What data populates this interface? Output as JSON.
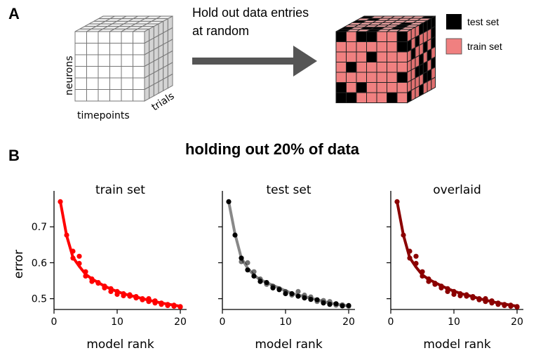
{
  "panel_a": {
    "letter": "A",
    "caption_line1": "Hold out data entries",
    "caption_line2": "at random",
    "axis_neurons": "neurons",
    "axis_timepoints": "timepoints",
    "axis_trials": "trials",
    "legend": [
      {
        "label": "test set",
        "color": "#000000"
      },
      {
        "label": "train set",
        "color": "#f08080"
      }
    ],
    "arrow_color": "#555555"
  },
  "panel_b": {
    "letter": "B",
    "title": "holding out 20% of data"
  },
  "chart_data": [
    {
      "type": "line",
      "title": "train set",
      "xlabel": "model rank",
      "ylabel": "error",
      "xlim": [
        0,
        21
      ],
      "ylim": [
        0.47,
        0.8
      ],
      "xticks": [
        0,
        10,
        20
      ],
      "yticks": [
        0.5,
        0.6,
        0.7
      ],
      "color": "#ff0000",
      "line": {
        "x": [
          1,
          2,
          3,
          4,
          5,
          6,
          7,
          8,
          9,
          10,
          11,
          12,
          13,
          14,
          15,
          16,
          17,
          18,
          19,
          20
        ],
        "y": [
          0.77,
          0.675,
          0.615,
          0.59,
          0.568,
          0.555,
          0.545,
          0.535,
          0.527,
          0.52,
          0.514,
          0.509,
          0.505,
          0.5,
          0.496,
          0.492,
          0.488,
          0.485,
          0.482,
          0.479
        ]
      },
      "points": {
        "x": [
          1,
          2,
          3,
          3,
          4,
          4,
          5,
          5,
          6,
          6,
          7,
          7,
          8,
          8,
          9,
          9,
          10,
          10,
          11,
          11,
          12,
          12,
          13,
          13,
          14,
          14,
          15,
          15,
          16,
          16,
          17,
          17,
          18,
          18,
          19,
          19,
          20,
          20
        ],
        "y": [
          0.77,
          0.677,
          0.613,
          0.632,
          0.598,
          0.618,
          0.575,
          0.563,
          0.555,
          0.548,
          0.543,
          0.545,
          0.535,
          0.53,
          0.528,
          0.52,
          0.512,
          0.52,
          0.514,
          0.508,
          0.507,
          0.511,
          0.506,
          0.502,
          0.497,
          0.5,
          0.492,
          0.5,
          0.488,
          0.494,
          0.488,
          0.484,
          0.484,
          0.481,
          0.482,
          0.479,
          0.478,
          0.477
        ]
      }
    },
    {
      "type": "line",
      "title": "test set",
      "xlabel": "model rank",
      "xlim": [
        0,
        21
      ],
      "ylim": [
        0.47,
        0.8
      ],
      "xticks": [
        0,
        10,
        20
      ],
      "yticks": [
        0.5,
        0.6,
        0.7
      ],
      "color": "#000000",
      "line_color": "#888888",
      "line": {
        "x": [
          1,
          2,
          3,
          4,
          5,
          6,
          7,
          8,
          9,
          10,
          11,
          12,
          13,
          14,
          15,
          16,
          17,
          18,
          19,
          20
        ],
        "y": [
          0.77,
          0.68,
          0.613,
          0.585,
          0.565,
          0.553,
          0.545,
          0.537,
          0.53,
          0.522,
          0.515,
          0.51,
          0.506,
          0.501,
          0.497,
          0.492,
          0.488,
          0.485,
          0.482,
          0.48
        ]
      },
      "points": {
        "x": [
          1,
          2,
          3,
          3,
          4,
          4,
          5,
          5,
          6,
          6,
          7,
          7,
          8,
          8,
          9,
          9,
          10,
          10,
          11,
          11,
          12,
          12,
          13,
          13,
          14,
          14,
          15,
          15,
          16,
          16,
          17,
          17,
          18,
          18,
          19,
          19,
          20,
          20
        ],
        "y": [
          0.77,
          0.677,
          0.613,
          0.603,
          0.6,
          0.58,
          0.575,
          0.563,
          0.555,
          0.548,
          0.545,
          0.54,
          0.535,
          0.53,
          0.528,
          0.525,
          0.52,
          0.514,
          0.514,
          0.51,
          0.52,
          0.507,
          0.51,
          0.502,
          0.505,
          0.498,
          0.497,
          0.492,
          0.495,
          0.488,
          0.492,
          0.484,
          0.486,
          0.482,
          0.483,
          0.48,
          0.481,
          0.479
        ],
        "opacity": [
          1,
          1,
          1,
          0.55,
          0.55,
          1,
          0.55,
          1,
          0.55,
          1,
          1,
          0.55,
          0.55,
          1,
          0.55,
          1,
          0.55,
          1,
          1,
          0.55,
          0.55,
          1,
          0.55,
          1,
          0.55,
          1,
          1,
          0.55,
          0.55,
          1,
          0.55,
          1,
          1,
          0.55,
          0.55,
          1,
          1,
          0.55
        ]
      }
    },
    {
      "type": "line",
      "title": "overlaid",
      "xlabel": "model rank",
      "xlim": [
        0,
        21
      ],
      "ylim": [
        0.47,
        0.8
      ],
      "xticks": [
        0,
        10,
        20
      ],
      "yticks": [
        0.5,
        0.6,
        0.7
      ],
      "color": "#8b0000",
      "line": {
        "x": [
          1,
          2,
          3,
          4,
          5,
          6,
          7,
          8,
          9,
          10,
          11,
          12,
          13,
          14,
          15,
          16,
          17,
          18,
          19,
          20
        ],
        "y": [
          0.77,
          0.677,
          0.614,
          0.588,
          0.566,
          0.554,
          0.545,
          0.536,
          0.528,
          0.521,
          0.515,
          0.51,
          0.506,
          0.5,
          0.496,
          0.492,
          0.488,
          0.485,
          0.482,
          0.479
        ]
      },
      "points": {
        "x": [
          1,
          2,
          3,
          3,
          4,
          4,
          5,
          5,
          6,
          6,
          7,
          7,
          8,
          8,
          9,
          9,
          10,
          10,
          11,
          11,
          12,
          12,
          13,
          13,
          14,
          14,
          15,
          15,
          16,
          16,
          17,
          17,
          18,
          18,
          19,
          19,
          20,
          20
        ],
        "y": [
          0.77,
          0.677,
          0.613,
          0.632,
          0.598,
          0.618,
          0.575,
          0.563,
          0.555,
          0.548,
          0.543,
          0.54,
          0.535,
          0.53,
          0.528,
          0.52,
          0.512,
          0.52,
          0.514,
          0.508,
          0.507,
          0.511,
          0.506,
          0.502,
          0.497,
          0.5,
          0.492,
          0.5,
          0.488,
          0.494,
          0.488,
          0.484,
          0.484,
          0.481,
          0.482,
          0.479,
          0.478,
          0.477
        ]
      }
    }
  ]
}
